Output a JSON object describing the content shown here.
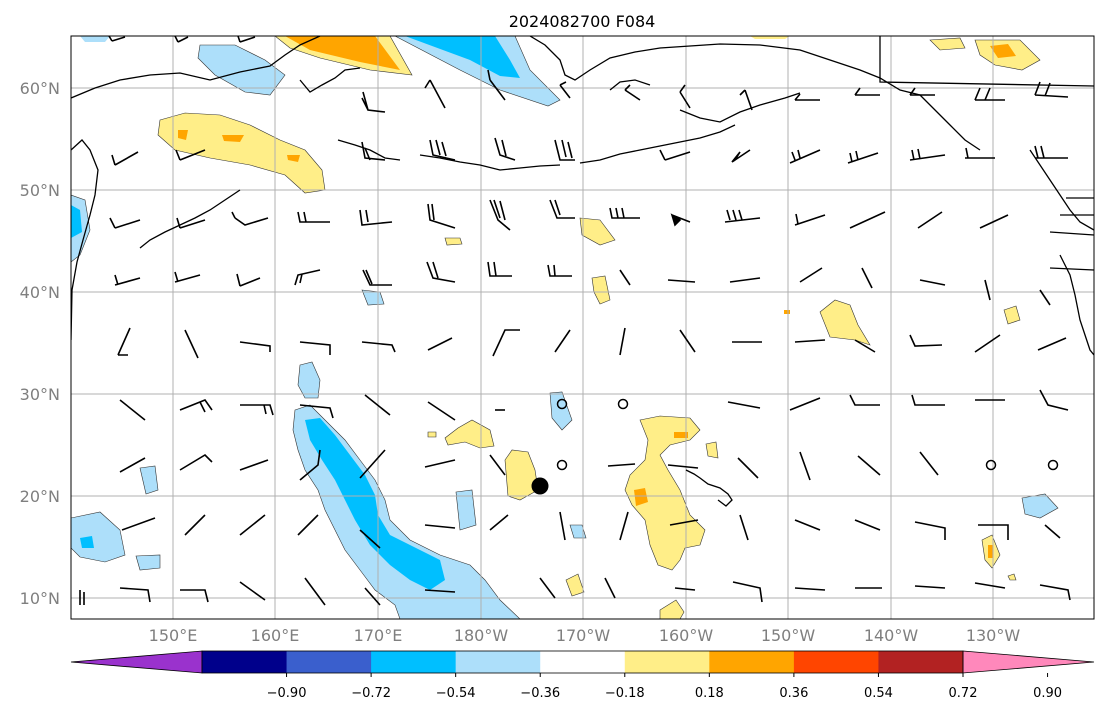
{
  "title": "2024082700 F084",
  "map": {
    "lat_labels": [
      "10°N",
      "20°N",
      "30°N",
      "40°N",
      "50°N",
      "60°N"
    ],
    "lon_labels": [
      "150°E",
      "160°E",
      "170°E",
      "180°W",
      "170°W",
      "160°W",
      "150°W",
      "140°W",
      "130°W"
    ],
    "colors": {
      "yellow": "#FFEE88",
      "orange": "#FFA500",
      "red_orange": "#FF4500",
      "light_blue": "#AEDDF8",
      "cyan": "#00BFFF",
      "land_outline": "#000000",
      "grid": "#b0b0b0"
    },
    "marker_icon": "black-dot-marker",
    "open_circle_icon": "open-circle-marker"
  },
  "colorbar": {
    "colors": [
      "#9A32CD",
      "#00008B",
      "#3A5FCD",
      "#00BFFF",
      "#ADDFFA",
      "#FFFFFF",
      "#FFEE88",
      "#FFA500",
      "#FF4500",
      "#B22222",
      "#FF88BB"
    ],
    "ticks": [
      "−0.90",
      "−0.72",
      "−0.54",
      "−0.36",
      "−0.18",
      "0.18",
      "0.36",
      "0.54",
      "0.72",
      "0.90"
    ]
  }
}
